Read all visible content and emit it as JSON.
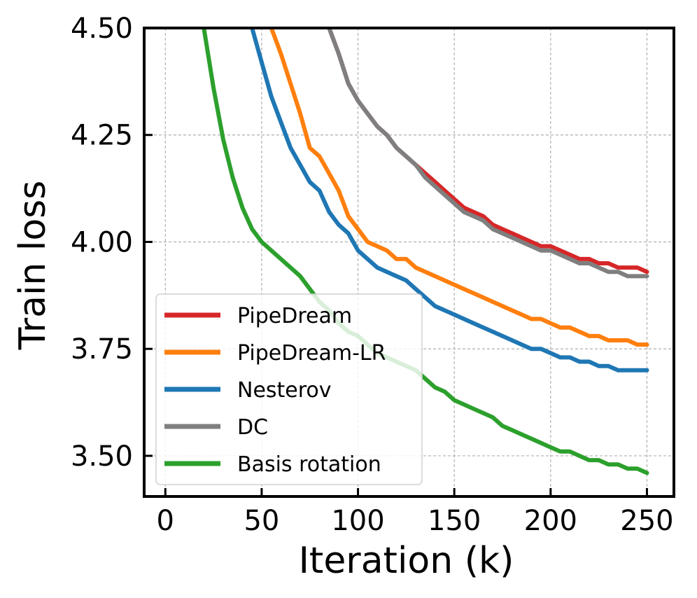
{
  "chart_data": {
    "type": "line",
    "title": "",
    "xlabel": "Iteration (k)",
    "ylabel": "Train loss",
    "xlim": [
      -11,
      264
    ],
    "ylim": [
      3.405,
      4.5
    ],
    "xticks": [
      0,
      50,
      100,
      150,
      200,
      250
    ],
    "xtick_labels": [
      "0",
      "50",
      "100",
      "150",
      "200",
      "250"
    ],
    "yticks": [
      3.5,
      3.75,
      4.0,
      4.25,
      4.5
    ],
    "ytick_labels": [
      "3.50",
      "3.75",
      "4.00",
      "4.25",
      "4.50"
    ],
    "grid": true,
    "legend_position": "lower-left",
    "series": [
      {
        "name": "PipeDream",
        "color": "#d62728",
        "x": [
          85,
          90,
          95,
          100,
          105,
          110,
          115,
          120,
          125,
          130,
          135,
          140,
          145,
          150,
          155,
          160,
          165,
          170,
          175,
          180,
          185,
          190,
          195,
          200,
          205,
          210,
          215,
          220,
          225,
          230,
          235,
          240,
          245,
          250
        ],
        "y": [
          4.5,
          4.44,
          4.37,
          4.33,
          4.3,
          4.27,
          4.25,
          4.22,
          4.2,
          4.18,
          4.16,
          4.14,
          4.12,
          4.1,
          4.08,
          4.07,
          4.06,
          4.04,
          4.03,
          4.02,
          4.01,
          4.0,
          3.99,
          3.99,
          3.98,
          3.97,
          3.96,
          3.96,
          3.95,
          3.95,
          3.94,
          3.94,
          3.94,
          3.93
        ]
      },
      {
        "name": "PipeDream-LR",
        "color": "#ff7f0e",
        "x": [
          55,
          60,
          65,
          70,
          75,
          80,
          85,
          90,
          95,
          100,
          105,
          110,
          115,
          120,
          125,
          130,
          135,
          140,
          145,
          150,
          155,
          160,
          165,
          170,
          175,
          180,
          185,
          190,
          195,
          200,
          205,
          210,
          215,
          220,
          225,
          230,
          235,
          240,
          245,
          250
        ],
        "y": [
          4.5,
          4.44,
          4.37,
          4.3,
          4.22,
          4.2,
          4.16,
          4.12,
          4.06,
          4.03,
          4.0,
          3.99,
          3.98,
          3.96,
          3.96,
          3.94,
          3.93,
          3.92,
          3.91,
          3.9,
          3.89,
          3.88,
          3.87,
          3.86,
          3.85,
          3.84,
          3.83,
          3.82,
          3.82,
          3.81,
          3.8,
          3.8,
          3.79,
          3.78,
          3.78,
          3.77,
          3.77,
          3.77,
          3.76,
          3.76
        ]
      },
      {
        "name": "Nesterov",
        "color": "#1f77b4",
        "x": [
          45,
          50,
          55,
          60,
          65,
          70,
          75,
          80,
          85,
          90,
          95,
          100,
          105,
          110,
          115,
          120,
          125,
          130,
          135,
          140,
          145,
          150,
          155,
          160,
          165,
          170,
          175,
          180,
          185,
          190,
          195,
          200,
          205,
          210,
          215,
          220,
          225,
          230,
          235,
          240,
          245,
          250
        ],
        "y": [
          4.5,
          4.42,
          4.34,
          4.28,
          4.22,
          4.18,
          4.14,
          4.12,
          4.07,
          4.04,
          4.02,
          3.98,
          3.96,
          3.94,
          3.93,
          3.92,
          3.91,
          3.89,
          3.87,
          3.85,
          3.84,
          3.83,
          3.82,
          3.81,
          3.8,
          3.79,
          3.78,
          3.77,
          3.76,
          3.75,
          3.75,
          3.74,
          3.73,
          3.73,
          3.72,
          3.72,
          3.71,
          3.71,
          3.7,
          3.7,
          3.7,
          3.7
        ]
      },
      {
        "name": "DC",
        "color": "#7f7f7f",
        "x": [
          85,
          90,
          95,
          100,
          105,
          110,
          115,
          120,
          125,
          130,
          135,
          140,
          145,
          150,
          155,
          160,
          165,
          170,
          175,
          180,
          185,
          190,
          195,
          200,
          205,
          210,
          215,
          220,
          225,
          230,
          235,
          240,
          245,
          250
        ],
        "y": [
          4.5,
          4.44,
          4.37,
          4.33,
          4.3,
          4.27,
          4.25,
          4.22,
          4.2,
          4.18,
          4.15,
          4.13,
          4.11,
          4.09,
          4.07,
          4.06,
          4.05,
          4.03,
          4.02,
          4.01,
          4.0,
          3.99,
          3.98,
          3.98,
          3.97,
          3.96,
          3.95,
          3.95,
          3.94,
          3.93,
          3.93,
          3.92,
          3.92,
          3.92
        ]
      },
      {
        "name": "Basis rotation",
        "color": "#2ca02c",
        "x": [
          20,
          25,
          30,
          35,
          40,
          45,
          50,
          55,
          60,
          65,
          70,
          75,
          80,
          85,
          90,
          95,
          100,
          105,
          110,
          115,
          120,
          125,
          130,
          135,
          140,
          145,
          150,
          155,
          160,
          165,
          170,
          175,
          180,
          185,
          190,
          195,
          200,
          205,
          210,
          215,
          220,
          225,
          230,
          235,
          240,
          245,
          250
        ],
        "y": [
          4.5,
          4.36,
          4.24,
          4.15,
          4.08,
          4.03,
          4.0,
          3.98,
          3.96,
          3.94,
          3.92,
          3.89,
          3.86,
          3.84,
          3.81,
          3.79,
          3.78,
          3.76,
          3.74,
          3.73,
          3.72,
          3.71,
          3.7,
          3.68,
          3.66,
          3.65,
          3.63,
          3.62,
          3.61,
          3.6,
          3.59,
          3.57,
          3.56,
          3.55,
          3.54,
          3.53,
          3.52,
          3.51,
          3.51,
          3.5,
          3.49,
          3.49,
          3.48,
          3.48,
          3.47,
          3.47,
          3.46
        ]
      }
    ]
  }
}
